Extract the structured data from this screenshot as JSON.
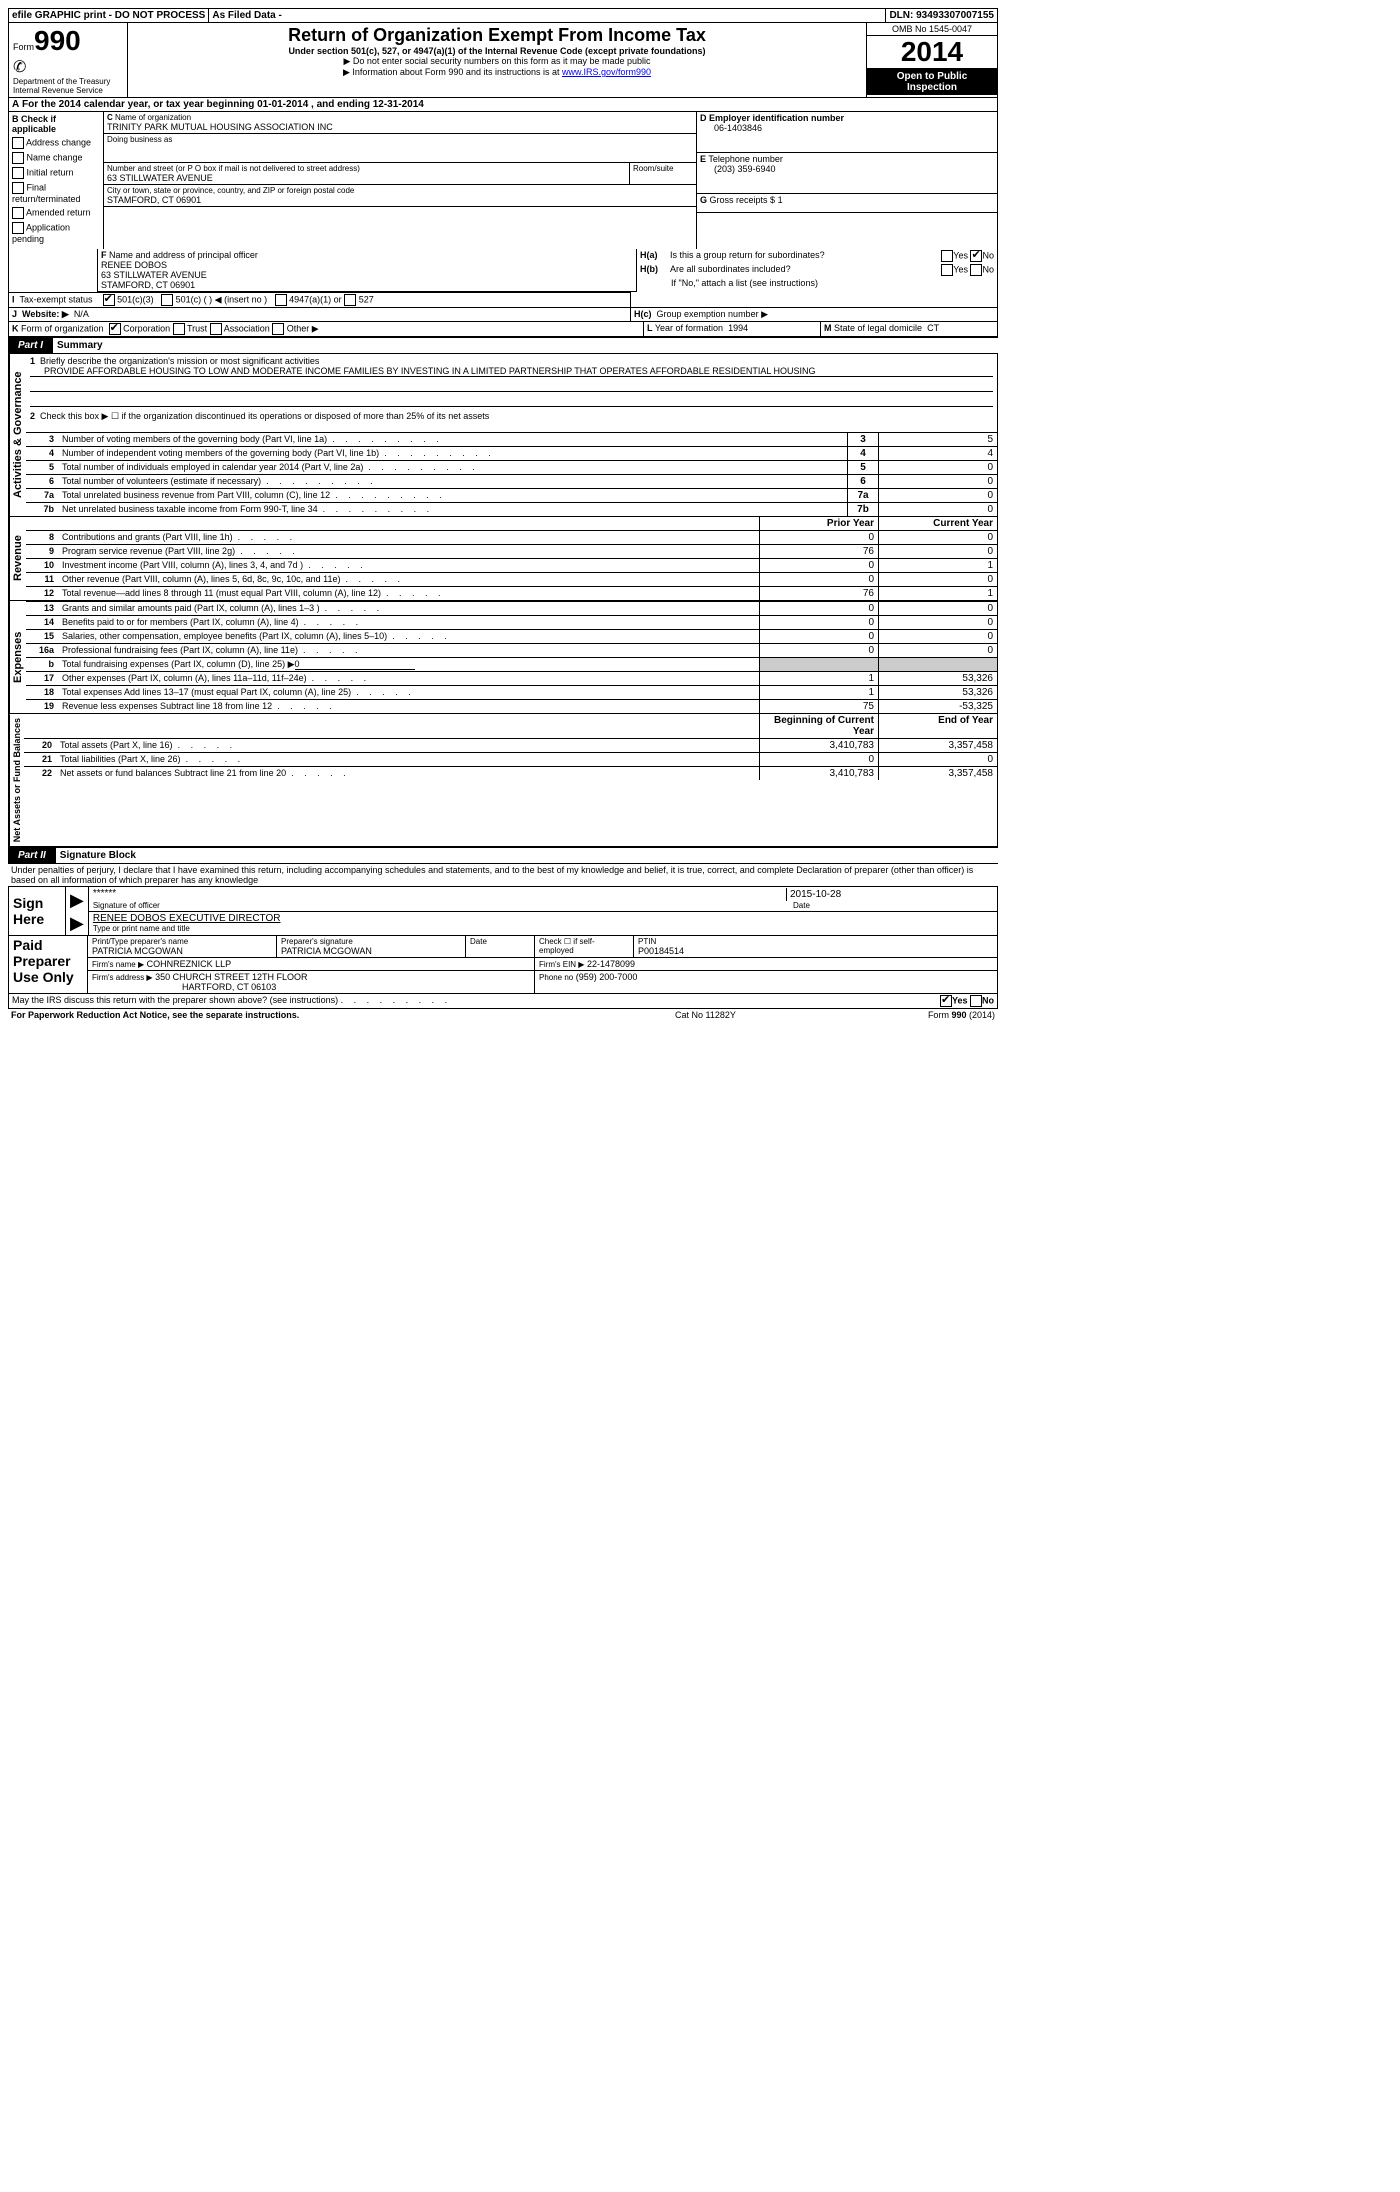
{
  "topbar": {
    "efile": "efile GRAPHIC print - DO NOT PROCESS",
    "asfiled": "As Filed Data -",
    "dln_label": "DLN:",
    "dln": "93493307007155"
  },
  "header": {
    "form_word": "Form",
    "form_num": "990",
    "dept1": "Department of the Treasury",
    "dept2": "Internal Revenue Service",
    "title": "Return of Organization Exempt From Income Tax",
    "subtitle": "Under section 501(c), 527, or 4947(a)(1) of the Internal Revenue Code (except private foundations)",
    "note1": "▶ Do not enter social security numbers on this form as it may be made public",
    "note2_pre": "▶ Information about Form 990 and its instructions is at ",
    "note2_link": "www.IRS.gov/form990",
    "omb": "OMB No 1545-0047",
    "year": "2014",
    "open": "Open to Public Inspection"
  },
  "A": {
    "text_pre": "For the 2014 calendar year, or tax year beginning ",
    "begin": "01-01-2014",
    "mid": " , and ending ",
    "end": "12-31-2014"
  },
  "B": {
    "label": "Check if applicable",
    "items": [
      "Address change",
      "Name change",
      "Initial return",
      "Final return/terminated",
      "Amended return",
      "Application pending"
    ]
  },
  "C": {
    "label": "Name of organization",
    "name": "TRINITY PARK MUTUAL HOUSING ASSOCIATION INC",
    "dba_label": "Doing business as",
    "addr_label": "Number and street (or P O box if mail is not delivered to street address)",
    "room_label": "Room/suite",
    "addr": "63 STILLWATER AVENUE",
    "city_label": "City or town, state or province, country, and ZIP or foreign postal code",
    "city": "STAMFORD, CT  06901"
  },
  "D": {
    "label": "Employer identification number",
    "val": "06-1403846"
  },
  "E": {
    "label": "Telephone number",
    "val": "(203) 359-6940"
  },
  "G": {
    "label": "Gross receipts $",
    "val": "1"
  },
  "F": {
    "label": "Name and address of principal officer",
    "name": "RENEE DOBOS",
    "addr1": "63 STILLWATER AVENUE",
    "addr2": "STAMFORD, CT  06901"
  },
  "H": {
    "a": "Is this a group return for subordinates?",
    "b": "Are all subordinates included?",
    "b_note": "If \"No,\" attach a list (see instructions)",
    "c": "Group exemption number ▶",
    "yes": "Yes",
    "no": "No"
  },
  "I": {
    "label": "Tax-exempt status",
    "opt1": "501(c)(3)",
    "opt2": "501(c) (   ) ◀ (insert no )",
    "opt3": "4947(a)(1) or",
    "opt4": "527"
  },
  "J": {
    "label": "Website: ▶",
    "val": "N/A"
  },
  "K": {
    "label": "Form of organization",
    "opts": [
      "Corporation",
      "Trust",
      "Association",
      "Other ▶"
    ]
  },
  "L": {
    "label": "Year of formation",
    "val": "1994"
  },
  "M": {
    "label": "State of legal domicile",
    "val": "CT"
  },
  "part1": {
    "label": "Part I",
    "title": "Summary"
  },
  "part2": {
    "label": "Part II",
    "title": "Signature Block"
  },
  "sections": {
    "act": "Activities & Governance",
    "rev": "Revenue",
    "exp": "Expenses",
    "net": "Net Assets or Fund Balances"
  },
  "line1": {
    "text": "Briefly describe the organization's mission or most significant activities",
    "mission": "PROVIDE AFFORDABLE HOUSING TO LOW AND MODERATE INCOME FAMILIES BY INVESTING IN A LIMITED PARTNERSHIP THAT OPERATES AFFORDABLE RESIDENTIAL HOUSING"
  },
  "line2": "Check this box ▶ ☐ if the organization discontinued its operations or disposed of more than 25% of its net assets",
  "dots": ".   .   .   .   .   .   .   .   .",
  "rows_gov": [
    {
      "n": "3",
      "t": "Number of voting members of the governing body (Part VI, line 1a)",
      "box": "3",
      "v": "5"
    },
    {
      "n": "4",
      "t": "Number of independent voting members of the governing body (Part VI, line 1b)",
      "box": "4",
      "v": "4"
    },
    {
      "n": "5",
      "t": "Total number of individuals employed in calendar year 2014 (Part V, line 2a)",
      "box": "5",
      "v": "0"
    },
    {
      "n": "6",
      "t": "Total number of volunteers (estimate if necessary)",
      "box": "6",
      "v": "0"
    },
    {
      "n": "7a",
      "t": "Total unrelated business revenue from Part VIII, column (C), line 12",
      "box": "7a",
      "v": "0"
    },
    {
      "n": "7b",
      "t": "Net unrelated business taxable income from Form 990-T, line 34",
      "box": "7b",
      "v": "0"
    }
  ],
  "prior_label": "Prior Year",
  "current_label": "Current Year",
  "rows_rev": [
    {
      "n": "8",
      "t": "Contributions and grants (Part VIII, line 1h)",
      "p": "0",
      "c": "0"
    },
    {
      "n": "9",
      "t": "Program service revenue (Part VIII, line 2g)",
      "p": "76",
      "c": "0"
    },
    {
      "n": "10",
      "t": "Investment income (Part VIII, column (A), lines 3, 4, and 7d )",
      "p": "0",
      "c": "1"
    },
    {
      "n": "11",
      "t": "Other revenue (Part VIII, column (A), lines 5, 6d, 8c, 9c, 10c, and 11e)",
      "p": "0",
      "c": "0"
    },
    {
      "n": "12",
      "t": "Total revenue—add lines 8 through 11 (must equal Part VIII, column (A), line 12)",
      "p": "76",
      "c": "1"
    }
  ],
  "rows_exp": [
    {
      "n": "13",
      "t": "Grants and similar amounts paid (Part IX, column (A), lines 1–3 )",
      "p": "0",
      "c": "0"
    },
    {
      "n": "14",
      "t": "Benefits paid to or for members (Part IX, column (A), line 4)",
      "p": "0",
      "c": "0"
    },
    {
      "n": "15",
      "t": "Salaries, other compensation, employee benefits (Part IX, column (A), lines 5–10)",
      "p": "0",
      "c": "0"
    },
    {
      "n": "16a",
      "t": "Professional fundraising fees (Part IX, column (A), line 11e)",
      "p": "0",
      "c": "0"
    },
    {
      "n": "b",
      "t": "Total fundraising expenses (Part IX, column (D), line 25) ▶",
      "p": "",
      "c": "",
      "inline": "0"
    },
    {
      "n": "17",
      "t": "Other expenses (Part IX, column (A), lines 11a–11d, 11f–24e)",
      "p": "1",
      "c": "53,326"
    },
    {
      "n": "18",
      "t": "Total expenses  Add lines 13–17 (must equal Part IX, column (A), line 25)",
      "p": "1",
      "c": "53,326"
    },
    {
      "n": "19",
      "t": "Revenue less expenses  Subtract line 18 from line 12",
      "p": "75",
      "c": "-53,325"
    }
  ],
  "begin_label": "Beginning of Current Year",
  "end_label": "End of Year",
  "rows_net": [
    {
      "n": "20",
      "t": "Total assets (Part X, line 16)",
      "p": "3,410,783",
      "c": "3,357,458"
    },
    {
      "n": "21",
      "t": "Total liabilities (Part X, line 26)",
      "p": "0",
      "c": "0"
    },
    {
      "n": "22",
      "t": "Net assets or fund balances  Subtract line 21 from line 20",
      "p": "3,410,783",
      "c": "3,357,458"
    }
  ],
  "perjury": "Under penalties of perjury, I declare that I have examined this return, including accompanying schedules and statements, and to the best of my knowledge and belief, it is true, correct, and complete  Declaration of preparer (other than officer) is based on all information of which preparer has any knowledge",
  "sign": {
    "here": "Sign Here",
    "stars": "******",
    "sig_label": "Signature of officer",
    "date": "2015-10-28",
    "date_label": "Date",
    "name": "RENEE DOBOS EXECUTIVE DIRECTOR",
    "name_label": "Type or print name and title"
  },
  "paid": {
    "here": "Paid Preparer Use Only",
    "prep_name_label": "Print/Type preparer's name",
    "prep_name": "PATRICIA MCGOWAN",
    "prep_sig_label": "Preparer's signature",
    "prep_sig": "PATRICIA MCGOWAN",
    "date_label": "Date",
    "check_label": "Check ☐ if self-employed",
    "ptin_label": "PTIN",
    "ptin": "P00184514",
    "firm_name_label": "Firm's name    ▶",
    "firm_name": "COHNREZNICK LLP",
    "firm_ein_label": "Firm's EIN ▶",
    "firm_ein": "22-1478099",
    "firm_addr_label": "Firm's address ▶",
    "firm_addr1": "350 CHURCH STREET 12TH FLOOR",
    "firm_addr2": "HARTFORD, CT  06103",
    "phone_label": "Phone no",
    "phone": "(959) 200-7000"
  },
  "footer": {
    "discuss": "May the IRS discuss this return with the preparer shown above? (see instructions)",
    "yes": "Yes",
    "no": "No",
    "pra": "For Paperwork Reduction Act Notice, see the separate instructions.",
    "cat": "Cat No 11282Y",
    "form": "Form 990 (2014)"
  }
}
